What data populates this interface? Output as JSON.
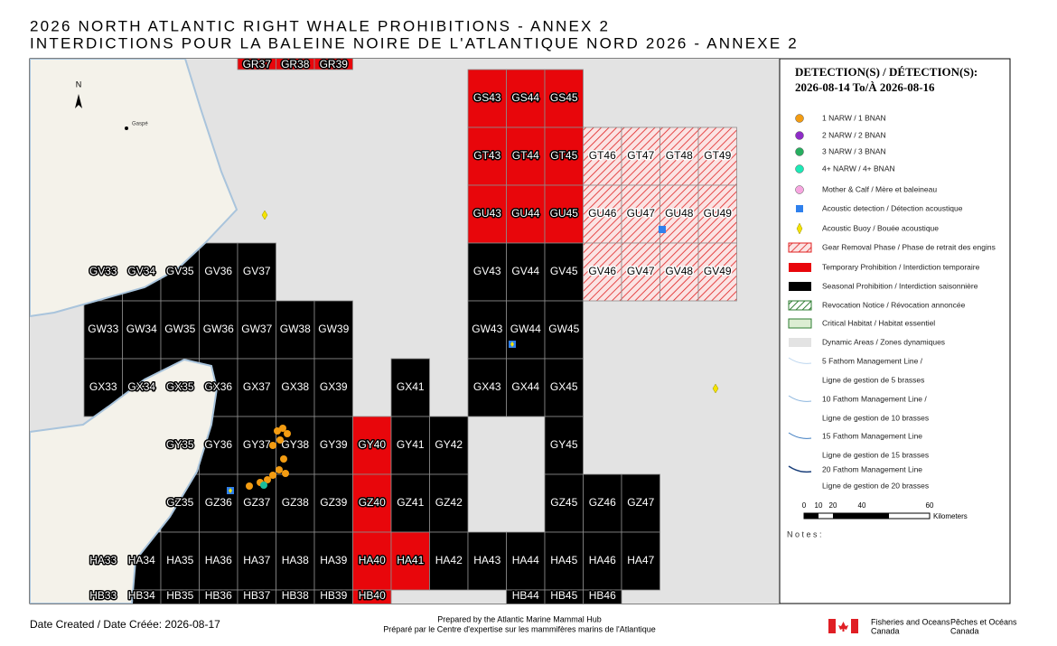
{
  "header": {
    "title_en": "2026 NORTH ATLANTIC RIGHT WHALE PROHIBITIONS - ANNEX 2",
    "title_fr": "INTERDICTIONS POUR LA BALEINE NOIRE DE L'ATLANTIQUE NORD 2026 - ANNEXE 2"
  },
  "map": {
    "north": "N",
    "place": "Gaspé",
    "cells": [
      {
        "label": "GR37",
        "status": "temporary"
      },
      {
        "label": "GR38",
        "status": "temporary"
      },
      {
        "label": "GR39",
        "status": "temporary"
      },
      {
        "label": "GS43",
        "status": "temporary"
      },
      {
        "label": "GS44",
        "status": "temporary"
      },
      {
        "label": "GS45",
        "status": "temporary"
      },
      {
        "label": "GT43",
        "status": "temporary"
      },
      {
        "label": "GT44",
        "status": "temporary"
      },
      {
        "label": "GT45",
        "status": "temporary"
      },
      {
        "label": "GT46",
        "status": "gear"
      },
      {
        "label": "GT47",
        "status": "gear"
      },
      {
        "label": "GT48",
        "status": "gear"
      },
      {
        "label": "GT49",
        "status": "gear"
      },
      {
        "label": "GU43",
        "status": "temporary"
      },
      {
        "label": "GU44",
        "status": "temporary"
      },
      {
        "label": "GU45",
        "status": "temporary"
      },
      {
        "label": "GU46",
        "status": "gear"
      },
      {
        "label": "GU47",
        "status": "gear"
      },
      {
        "label": "GU48",
        "status": "gear"
      },
      {
        "label": "GU49",
        "status": "gear"
      },
      {
        "label": "GV33",
        "status": "seasonal"
      },
      {
        "label": "GV34",
        "status": "seasonal"
      },
      {
        "label": "GV35",
        "status": "seasonal"
      },
      {
        "label": "GV36",
        "status": "seasonal"
      },
      {
        "label": "GV37",
        "status": "seasonal"
      },
      {
        "label": "GV43",
        "status": "seasonal"
      },
      {
        "label": "GV44",
        "status": "seasonal"
      },
      {
        "label": "GV45",
        "status": "seasonal"
      },
      {
        "label": "GV46",
        "status": "gear"
      },
      {
        "label": "GV47",
        "status": "gear"
      },
      {
        "label": "GV48",
        "status": "gear"
      },
      {
        "label": "GV49",
        "status": "gear"
      },
      {
        "label": "GW33",
        "status": "seasonal"
      },
      {
        "label": "GW34",
        "status": "seasonal"
      },
      {
        "label": "GW35",
        "status": "seasonal"
      },
      {
        "label": "GW36",
        "status": "seasonal"
      },
      {
        "label": "GW37",
        "status": "seasonal"
      },
      {
        "label": "GW38",
        "status": "seasonal"
      },
      {
        "label": "GW39",
        "status": "seasonal"
      },
      {
        "label": "GW43",
        "status": "seasonal"
      },
      {
        "label": "GW44",
        "status": "seasonal"
      },
      {
        "label": "GW45",
        "status": "seasonal"
      },
      {
        "label": "GX33",
        "status": "seasonal"
      },
      {
        "label": "GX34",
        "status": "seasonal"
      },
      {
        "label": "GX35",
        "status": "seasonal"
      },
      {
        "label": "GX36",
        "status": "seasonal"
      },
      {
        "label": "GX37",
        "status": "seasonal"
      },
      {
        "label": "GX38",
        "status": "seasonal"
      },
      {
        "label": "GX39",
        "status": "seasonal"
      },
      {
        "label": "GX41",
        "status": "seasonal"
      },
      {
        "label": "GX43",
        "status": "seasonal"
      },
      {
        "label": "GX44",
        "status": "seasonal"
      },
      {
        "label": "GX45",
        "status": "seasonal"
      },
      {
        "label": "GY35",
        "status": "seasonal"
      },
      {
        "label": "GY36",
        "status": "seasonal"
      },
      {
        "label": "GY37",
        "status": "seasonal"
      },
      {
        "label": "GY38",
        "status": "seasonal"
      },
      {
        "label": "GY39",
        "status": "seasonal"
      },
      {
        "label": "GY40",
        "status": "temporary"
      },
      {
        "label": "GY41",
        "status": "seasonal"
      },
      {
        "label": "GY42",
        "status": "seasonal"
      },
      {
        "label": "GY45",
        "status": "seasonal"
      },
      {
        "label": "GZ35",
        "status": "seasonal"
      },
      {
        "label": "GZ36",
        "status": "seasonal"
      },
      {
        "label": "GZ37",
        "status": "seasonal"
      },
      {
        "label": "GZ38",
        "status": "seasonal"
      },
      {
        "label": "GZ39",
        "status": "seasonal"
      },
      {
        "label": "GZ40",
        "status": "temporary"
      },
      {
        "label": "GZ41",
        "status": "seasonal"
      },
      {
        "label": "GZ42",
        "status": "seasonal"
      },
      {
        "label": "GZ45",
        "status": "seasonal"
      },
      {
        "label": "GZ46",
        "status": "seasonal"
      },
      {
        "label": "GZ47",
        "status": "seasonal"
      },
      {
        "label": "HA33",
        "status": "none"
      },
      {
        "label": "HA34",
        "status": "seasonal"
      },
      {
        "label": "HA35",
        "status": "seasonal"
      },
      {
        "label": "HA36",
        "status": "seasonal"
      },
      {
        "label": "HA37",
        "status": "seasonal"
      },
      {
        "label": "HA38",
        "status": "seasonal"
      },
      {
        "label": "HA39",
        "status": "seasonal"
      },
      {
        "label": "HA40",
        "status": "temporary"
      },
      {
        "label": "HA41",
        "status": "temporary"
      },
      {
        "label": "HA42",
        "status": "seasonal"
      },
      {
        "label": "HA43",
        "status": "seasonal"
      },
      {
        "label": "HA44",
        "status": "seasonal"
      },
      {
        "label": "HA45",
        "status": "seasonal"
      },
      {
        "label": "HA46",
        "status": "seasonal"
      },
      {
        "label": "HA47",
        "status": "seasonal"
      },
      {
        "label": "HB33",
        "status": "seasonal"
      },
      {
        "label": "HB34",
        "status": "seasonal"
      },
      {
        "label": "HB35",
        "status": "seasonal"
      },
      {
        "label": "HB36",
        "status": "seasonal"
      },
      {
        "label": "HB37",
        "status": "seasonal"
      },
      {
        "label": "HB38",
        "status": "seasonal"
      },
      {
        "label": "HB39",
        "status": "seasonal"
      },
      {
        "label": "HB40",
        "status": "temporary"
      },
      {
        "label": "HB44",
        "status": "seasonal"
      },
      {
        "label": "HB45",
        "status": "seasonal"
      },
      {
        "label": "HB46",
        "status": "seasonal"
      }
    ]
  },
  "legend": {
    "heading": "DETECTION(S) / DÉTECTION(S):",
    "dates": "2026-08-14 To/À 2026-08-16",
    "items": [
      "1 NARW / 1 BNAN",
      "2 NARW / 2 BNAN",
      "3 NARW / 3 BNAN",
      "4+ NARW / 4+ BNAN",
      "Mother & Calf / Mère et baleineau",
      "Acoustic detection / Détection acoustique",
      "Acoustic Buoy / Bouée acoustique",
      "Gear Removal Phase / Phase de retrait des engins",
      "Temporary Prohibition / Interdiction temporaire",
      "Seasonal Prohibition / Interdiction saisonnière",
      "Revocation Notice / Révocation annoncée",
      "Critical Habitat / Habitat essentiel",
      "Dynamic Areas / Zones dynamiques",
      "5 Fathom Management Line /",
      "Ligne de gestion de 5 brasses",
      "10 Fathom Management Line /",
      "Ligne de gestion de 10 brasses",
      "15 Fathom Management Line",
      "Ligne de gestion de 15 brasses",
      "20 Fathom Management Line",
      "Ligne de gestion de 20 brasses"
    ]
  },
  "scale": {
    "ticks": [
      "0",
      "10",
      "20",
      "40",
      "60"
    ],
    "unit": "Kilometers"
  },
  "notes": "N o t e s :",
  "footer": {
    "date": "Date Created / Date Créée: 2026-08-17",
    "prepared_en": "Prepared by the Atlantic Marine Mammal Hub",
    "prepared_fr": "Préparé par le Centre d'expertise sur les mammifères marins de l'Atlantique",
    "dept_en_1": "Fisheries and Oceans",
    "dept_en_2": "Canada",
    "dept_fr_1": "Pêches et Océans",
    "dept_fr_2": "Canada"
  }
}
